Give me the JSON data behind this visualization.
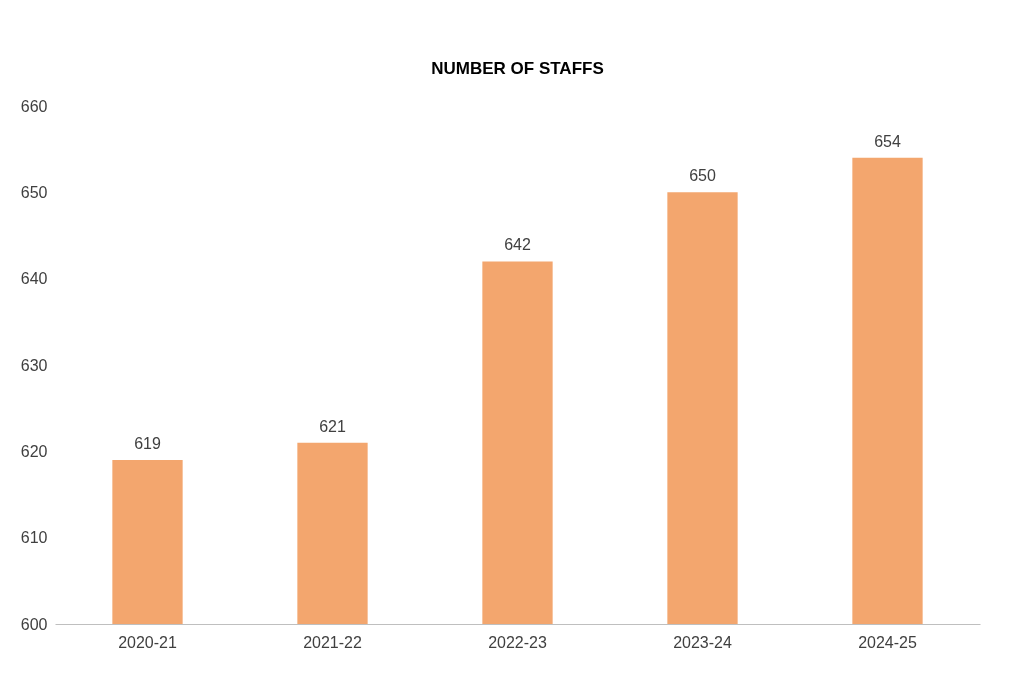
{
  "chart_data": {
    "type": "bar",
    "title": "NUMBER  OF STAFFS",
    "categories": [
      "2020-21",
      "2021-22",
      "2022-23",
      "2023-24",
      "2024-25"
    ],
    "values": [
      619,
      621,
      642,
      650,
      654
    ],
    "color": "#f3a66e",
    "ylim": [
      600,
      660
    ],
    "yticks": [
      600,
      610,
      620,
      630,
      640,
      650,
      660
    ],
    "grid": false,
    "data_labels": true
  }
}
